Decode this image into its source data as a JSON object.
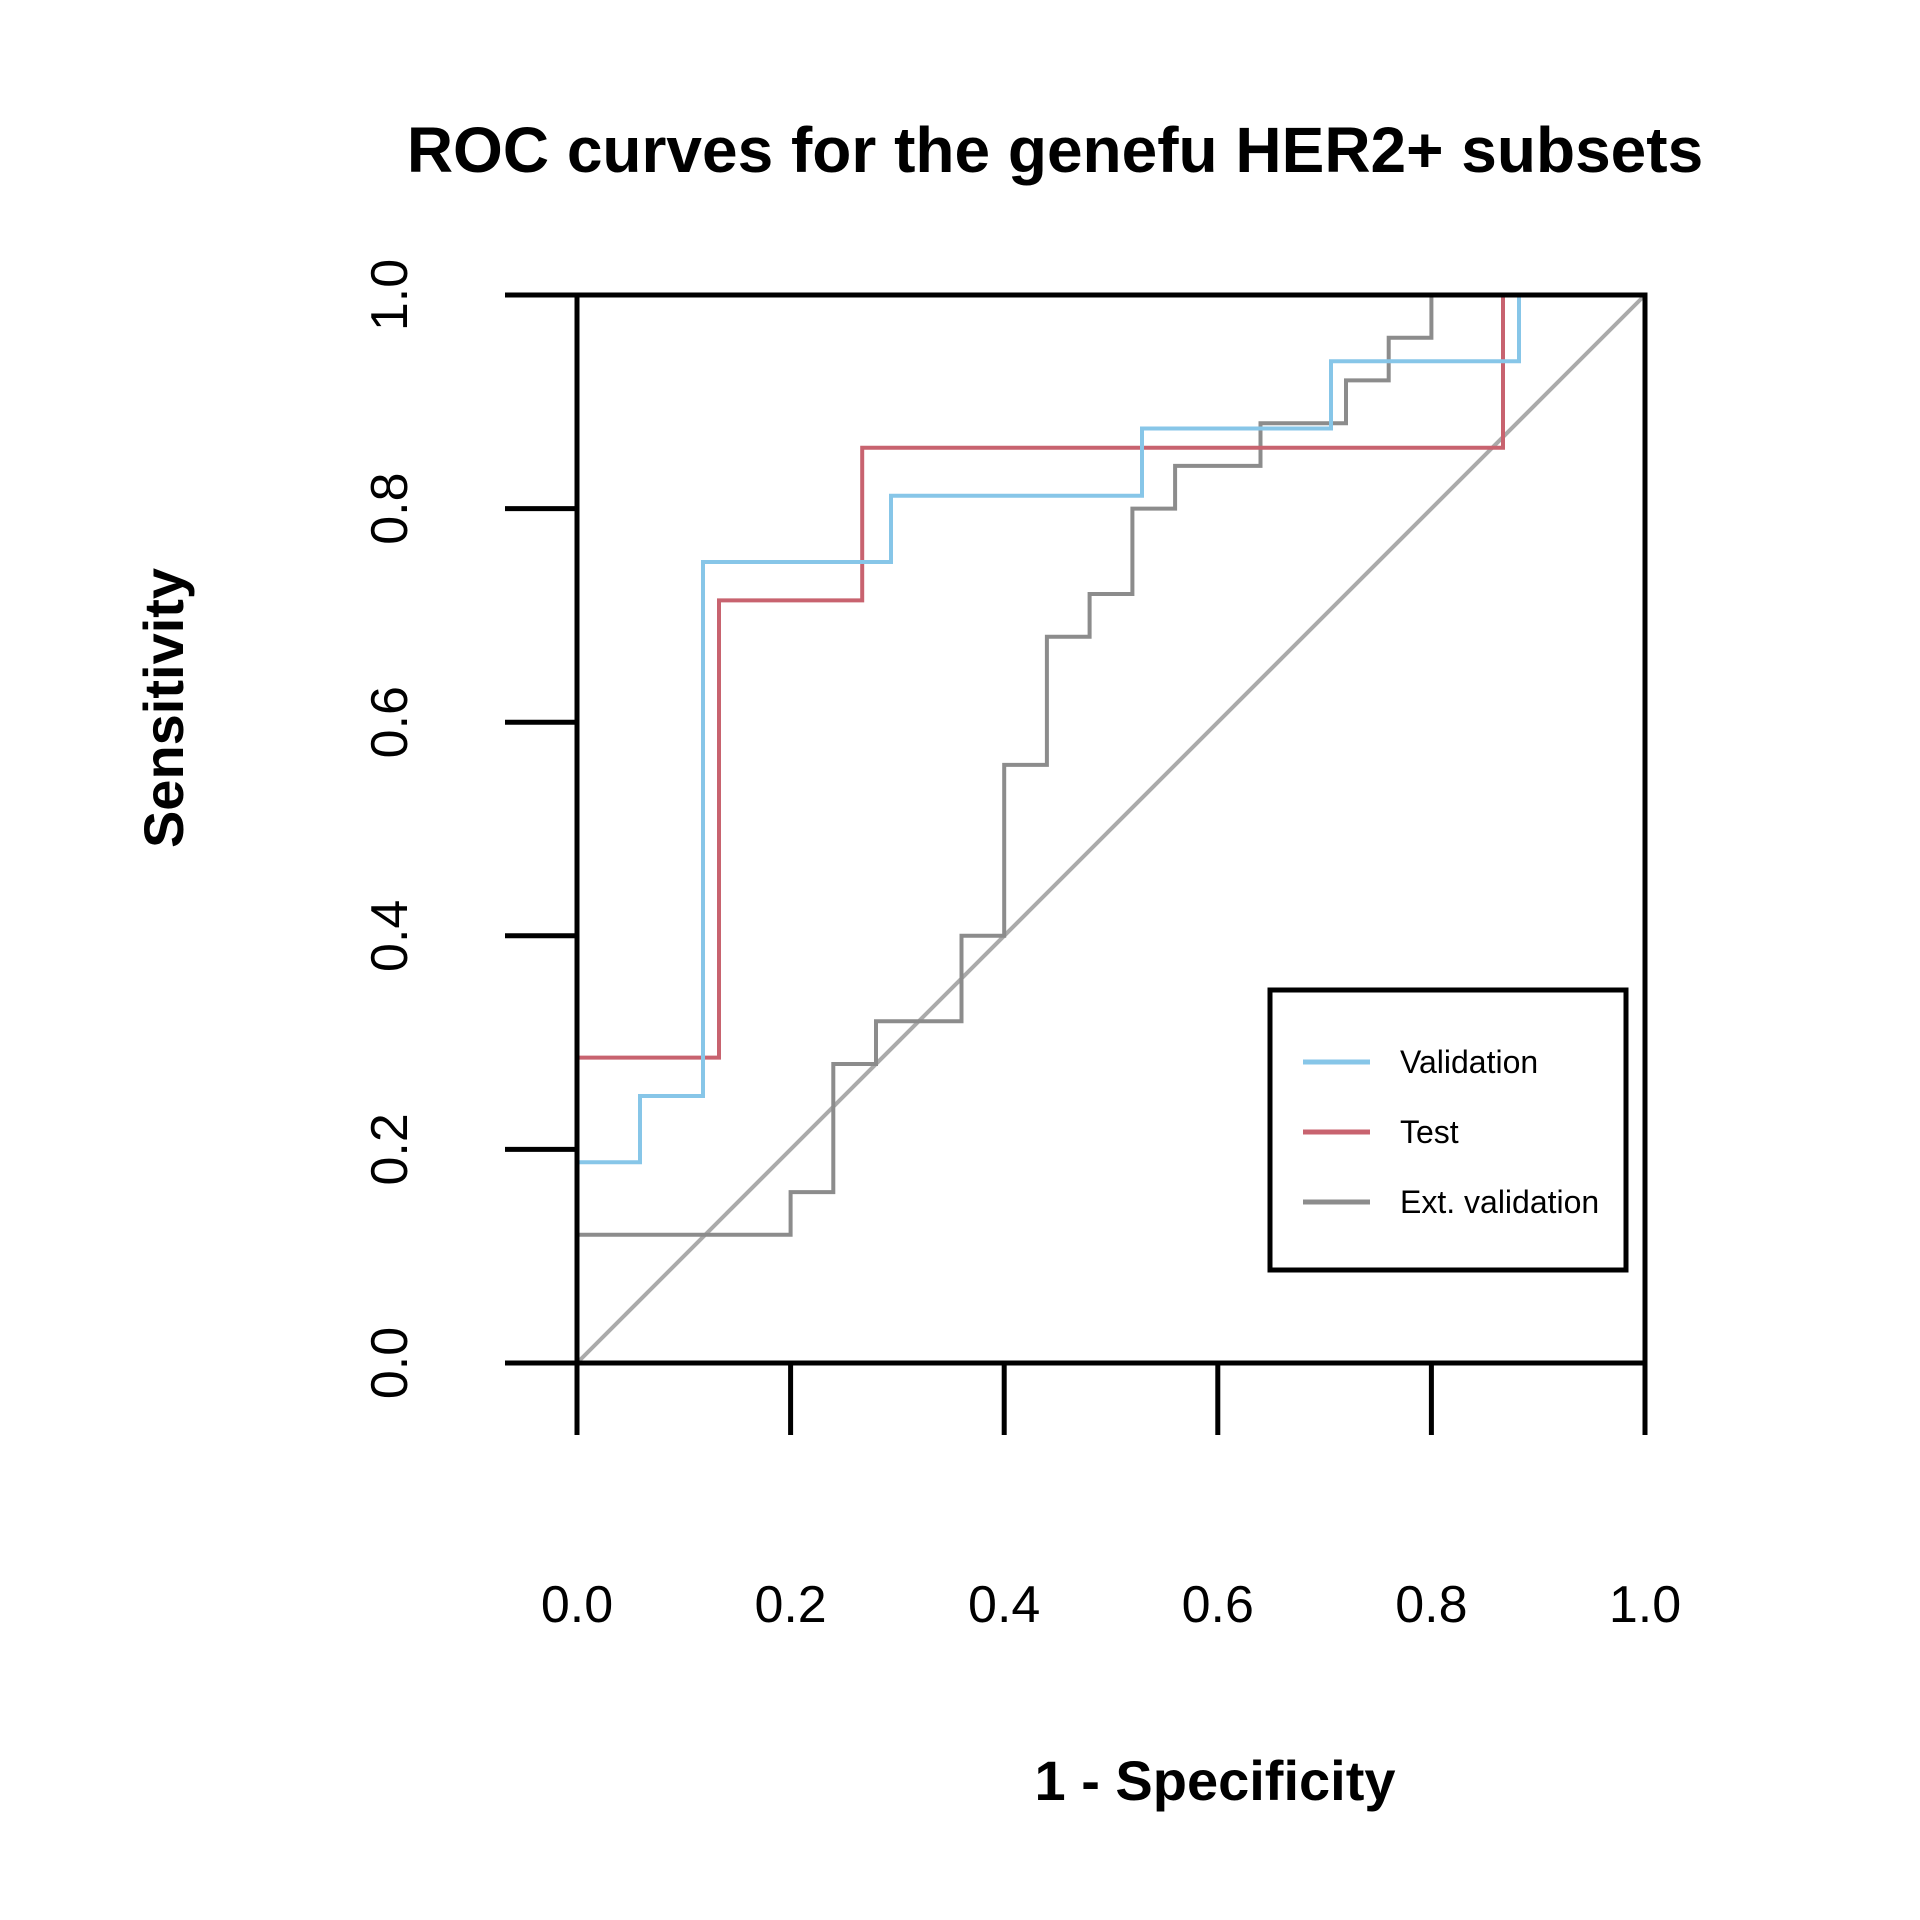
{
  "chart_data": {
    "type": "line",
    "title": "ROC curves for the genefu HER2+ subsets",
    "xlabel": "1 - Specificity",
    "ylabel": "Sensitivity",
    "xlim": [
      0,
      1
    ],
    "ylim": [
      0,
      1
    ],
    "x_ticks": [
      "0.0",
      "0.2",
      "0.4",
      "0.6",
      "0.8",
      "1.0"
    ],
    "y_ticks": [
      "0.0",
      "0.2",
      "0.4",
      "0.6",
      "0.8",
      "1.0"
    ],
    "grid": false,
    "legend_position": "bottom-right",
    "reference_line": {
      "x": [
        0,
        1
      ],
      "y": [
        0,
        1
      ],
      "color": "#aaaaaa"
    },
    "series": [
      {
        "name": "Validation",
        "color": "#87c6e8",
        "x": [
          0,
          0,
          0.059,
          0.059,
          0.118,
          0.118,
          0.294,
          0.294,
          0.529,
          0.529,
          0.706,
          0.706,
          0.882,
          0.882
        ],
        "y": [
          0,
          0.188,
          0.188,
          0.25,
          0.25,
          0.75,
          0.75,
          0.812,
          0.812,
          0.875,
          0.875,
          0.938,
          0.938,
          1.0
        ]
      },
      {
        "name": "Test",
        "color": "#c8636f",
        "x": [
          0,
          0,
          0.133,
          0.133,
          0.267,
          0.267,
          0.867,
          0.867
        ],
        "y": [
          0,
          0.286,
          0.286,
          0.714,
          0.714,
          0.857,
          0.857,
          1.0
        ]
      },
      {
        "name": "Ext. validation",
        "color": "#8c8c8c",
        "x": [
          0,
          0,
          0.2,
          0.2,
          0.24,
          0.24,
          0.28,
          0.28,
          0.36,
          0.36,
          0.4,
          0.4,
          0.44,
          0.44,
          0.48,
          0.48,
          0.52,
          0.52,
          0.56,
          0.56,
          0.64,
          0.64,
          0.72,
          0.72,
          0.76,
          0.76,
          0.8,
          0.8,
          1.0
        ],
        "y": [
          0,
          0.12,
          0.12,
          0.16,
          0.16,
          0.28,
          0.28,
          0.32,
          0.32,
          0.4,
          0.4,
          0.56,
          0.56,
          0.68,
          0.68,
          0.72,
          0.72,
          0.8,
          0.8,
          0.84,
          0.84,
          0.88,
          0.88,
          0.92,
          0.92,
          0.96,
          0.96,
          1.0,
          1.0
        ]
      }
    ]
  }
}
